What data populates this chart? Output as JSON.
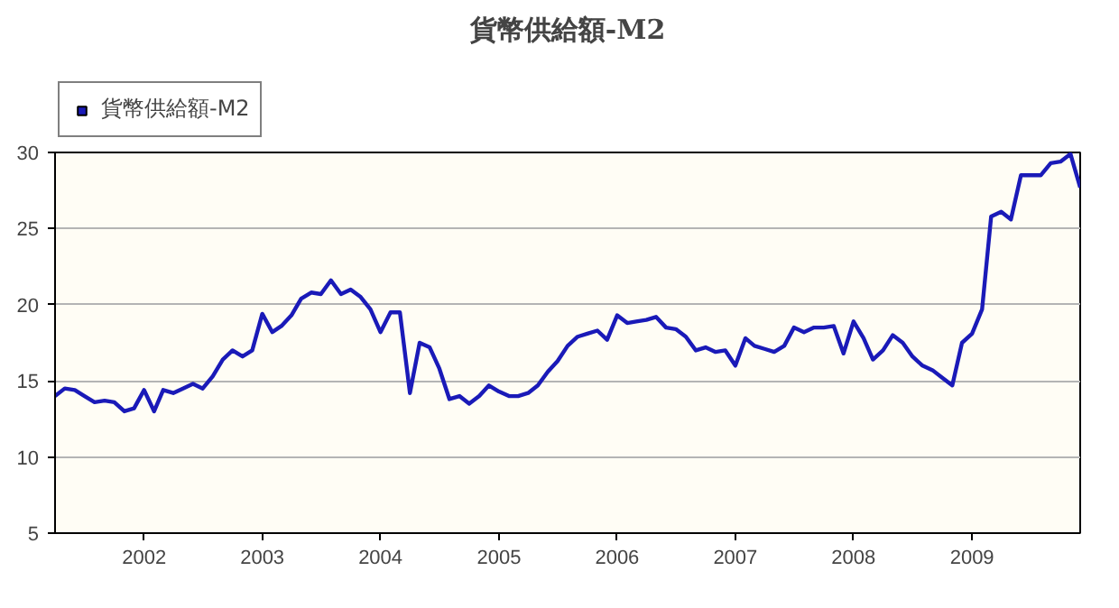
{
  "chart_data": {
    "type": "line",
    "title": "貨幣供給額-M2",
    "x": [
      "2001-04",
      "2001-05",
      "2001-06",
      "2001-07",
      "2001-08",
      "2001-09",
      "2001-10",
      "2001-11",
      "2001-12",
      "2002-01",
      "2002-02",
      "2002-03",
      "2002-04",
      "2002-05",
      "2002-06",
      "2002-07",
      "2002-08",
      "2002-09",
      "2002-10",
      "2002-11",
      "2002-12",
      "2003-01",
      "2003-02",
      "2003-03",
      "2003-04",
      "2003-05",
      "2003-06",
      "2003-07",
      "2003-08",
      "2003-09",
      "2003-10",
      "2003-11",
      "2003-12",
      "2004-01",
      "2004-02",
      "2004-03",
      "2004-04",
      "2004-05",
      "2004-06",
      "2004-07",
      "2004-08",
      "2004-09",
      "2004-10",
      "2004-11",
      "2004-12",
      "2005-01",
      "2005-02",
      "2005-03",
      "2005-04",
      "2005-05",
      "2005-06",
      "2005-07",
      "2005-08",
      "2005-09",
      "2005-10",
      "2005-11",
      "2005-12",
      "2006-01",
      "2006-02",
      "2006-03",
      "2006-04",
      "2006-05",
      "2006-06",
      "2006-07",
      "2006-08",
      "2006-09",
      "2006-10",
      "2006-11",
      "2006-12",
      "2007-01",
      "2007-02",
      "2007-03",
      "2007-04",
      "2007-05",
      "2007-06",
      "2007-07",
      "2007-08",
      "2007-09",
      "2007-10",
      "2007-11",
      "2007-12",
      "2008-01",
      "2008-02",
      "2008-03",
      "2008-04",
      "2008-05",
      "2008-06",
      "2008-07",
      "2008-08",
      "2008-09",
      "2008-10",
      "2008-11",
      "2008-12",
      "2009-01",
      "2009-02",
      "2009-03",
      "2009-04",
      "2009-05",
      "2009-06",
      "2009-07",
      "2009-08",
      "2009-09",
      "2009-10",
      "2009-11",
      "2009-12"
    ],
    "series": [
      {
        "name": "貨幣供給額-M2",
        "color": "#1a1ab8",
        "values": [
          14.0,
          14.5,
          14.4,
          14.0,
          13.6,
          13.7,
          13.6,
          13.0,
          13.2,
          14.4,
          13.0,
          14.4,
          14.2,
          14.5,
          14.8,
          14.5,
          15.3,
          16.4,
          17.0,
          16.6,
          17.0,
          19.4,
          18.2,
          18.6,
          19.3,
          20.4,
          20.8,
          20.7,
          21.6,
          20.7,
          21.0,
          20.5,
          19.7,
          18.2,
          19.5,
          19.5,
          14.2,
          17.5,
          17.2,
          15.8,
          13.8,
          14.0,
          13.5,
          14.0,
          14.7,
          14.3,
          14.0,
          14.0,
          14.2,
          14.7,
          15.6,
          16.3,
          17.3,
          17.9,
          18.1,
          18.3,
          17.7,
          19.3,
          18.8,
          18.9,
          19.0,
          19.2,
          18.5,
          18.4,
          17.9,
          17.0,
          17.2,
          16.9,
          17.0,
          16.0,
          17.8,
          17.3,
          17.1,
          16.9,
          17.3,
          18.5,
          18.2,
          18.5,
          18.5,
          18.6,
          16.8,
          18.9,
          17.8,
          16.4,
          17.0,
          18.0,
          17.5,
          16.6,
          16.0,
          15.7,
          15.2,
          14.7,
          17.5,
          18.1,
          19.7,
          25.8,
          26.1,
          25.6,
          28.5,
          28.5,
          28.5,
          29.3,
          29.4,
          29.9,
          27.7
        ]
      }
    ],
    "xlim": [
      "2001-04",
      "2009-12"
    ],
    "xticks": [
      "2002",
      "2003",
      "2004",
      "2005",
      "2006",
      "2007",
      "2008",
      "2009"
    ],
    "ylim": [
      5,
      30
    ],
    "yticks": [
      5,
      10,
      15,
      20,
      25,
      30
    ],
    "grid": "y",
    "legend": "top left",
    "marker": "none",
    "line_style": "solid"
  }
}
